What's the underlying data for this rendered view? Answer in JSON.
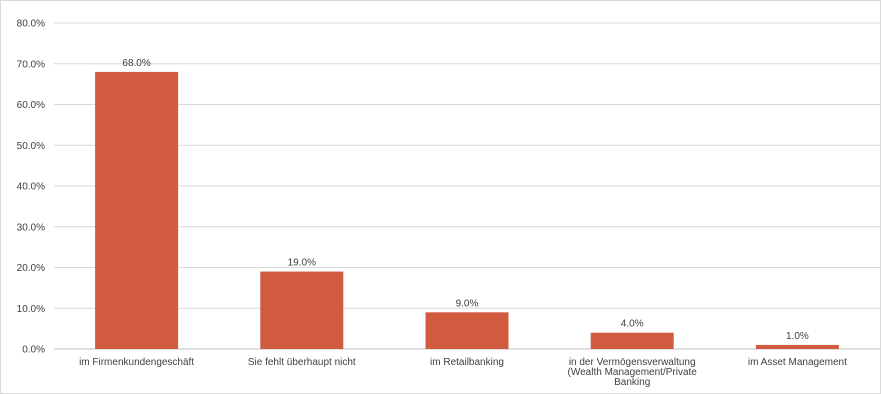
{
  "chart_data": {
    "type": "bar",
    "title": "",
    "xlabel": "",
    "ylabel": "",
    "ylim": [
      0,
      80
    ],
    "y_ticks": [
      0,
      10,
      20,
      30,
      40,
      50,
      60,
      70,
      80
    ],
    "y_tick_labels": [
      "0.0%",
      "10.0%",
      "20.0%",
      "30.0%",
      "40.0%",
      "50.0%",
      "60.0%",
      "70.0%",
      "80.0%"
    ],
    "categories": [
      [
        "im Firmenkundengeschäft"
      ],
      [
        "Sie fehlt überhaupt nicht"
      ],
      [
        "im Retailbanking"
      ],
      [
        "in der Vermögensverwaltung",
        "(Wealth Management/Private",
        "Banking"
      ],
      [
        "im Asset Management"
      ]
    ],
    "values": [
      68.0,
      19.0,
      9.0,
      4.0,
      1.0
    ],
    "data_labels": [
      "68.0%",
      "19.0%",
      "9.0%",
      "4.0%",
      "1.0%"
    ],
    "bar_color": "#d05b3f",
    "grid": true,
    "legend": "none"
  }
}
